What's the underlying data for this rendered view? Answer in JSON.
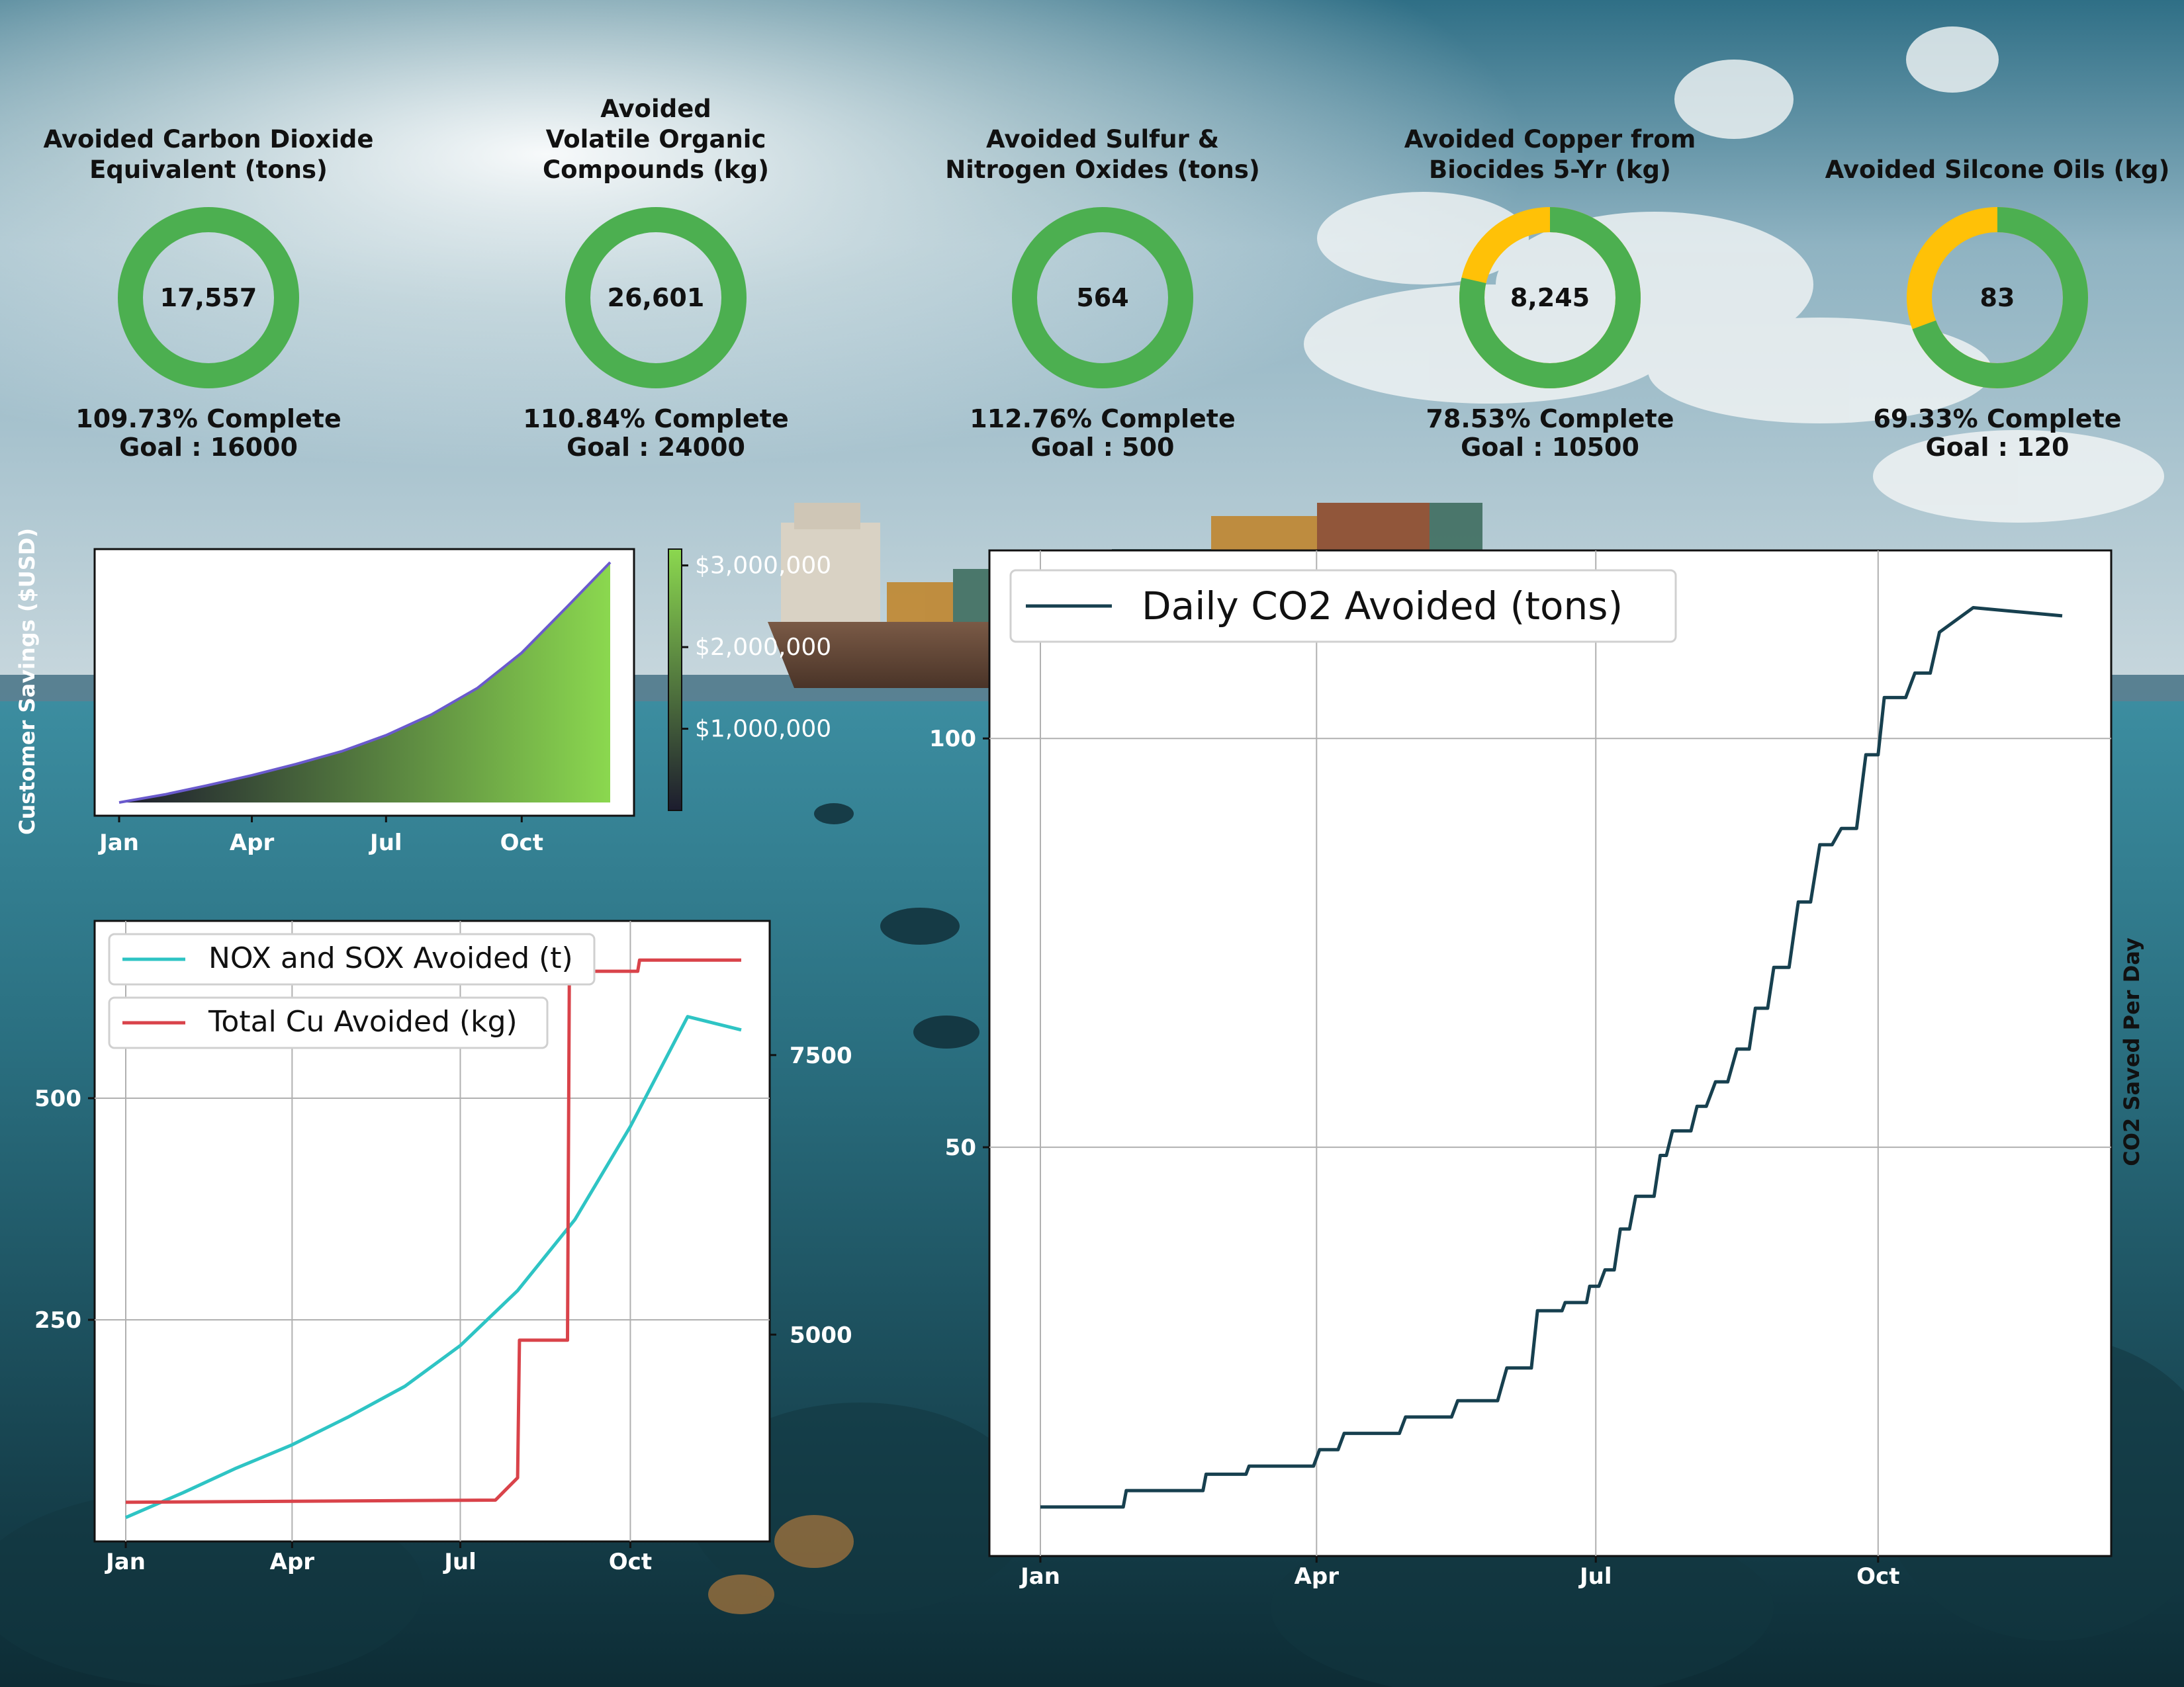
{
  "kpis": [
    {
      "title": "Avoided Carbon Dioxide\nEquivalent (tons)",
      "value": "17,557",
      "percent_complete": 1.0,
      "complete_text": "109.73% Complete",
      "goal_text": "Goal : 16000",
      "color": "#4caf50"
    },
    {
      "title": "Avoided\nVolatile Organic\nCompounds (kg)",
      "value": "26,601",
      "percent_complete": 1.0,
      "complete_text": "110.84% Complete",
      "goal_text": "Goal : 24000",
      "color": "#4caf50"
    },
    {
      "title": "Avoided Sulfur &\nNitrogen Oxides (tons)",
      "value": "564",
      "percent_complete": 1.0,
      "complete_text": "112.76% Complete",
      "goal_text": "Goal : 500",
      "color": "#4caf50"
    },
    {
      "title": "Avoided Copper from\nBiocides 5-Yr (kg)",
      "value": "8,245",
      "percent_complete": 0.7853,
      "complete_text": "78.53% Complete",
      "goal_text": "Goal : 10500",
      "color": "#4caf50",
      "remainder_color": "#ffc107"
    },
    {
      "title": "Avoided Silcone Oils (kg)",
      "value": "83",
      "percent_complete": 0.6933,
      "complete_text": "69.33% Complete",
      "goal_text": "Goal : 120",
      "color": "#4caf50",
      "remainder_color": "#ffc107"
    }
  ],
  "chart_data": [
    {
      "type": "area",
      "ylabel": "Customer Savings\n($USD)",
      "x_ticks": [
        "Jan",
        "Apr",
        "Jul",
        "Oct"
      ],
      "colorbar": {
        "ticks": [
          "$1,000,000",
          "$2,000,000",
          "$3,000,000"
        ],
        "range": [
          0,
          3200000
        ],
        "colors": [
          "#1c1c2e",
          "#8bd84f"
        ]
      },
      "x": [
        "Jan 1",
        "Feb 1",
        "Mar 1",
        "Apr 1",
        "May 1",
        "Jun 1",
        "Jul 1",
        "Aug 1",
        "Sep 1",
        "Oct 1",
        "Nov 1",
        "Nov 30"
      ],
      "values": [
        0,
        100000,
        210000,
        340000,
        480000,
        640000,
        840000,
        1100000,
        1430000,
        1870000,
        2450000,
        3000000
      ],
      "line_color": "#6a5acd"
    },
    {
      "type": "line",
      "x_ticks": [
        "Jan",
        "Apr",
        "Jul",
        "Oct"
      ],
      "y_ticks": [
        250,
        500
      ],
      "y2_ticks": [
        5000,
        7500
      ],
      "ylim": [
        0,
        700
      ],
      "y2lim": [
        3150,
        8700
      ],
      "series": [
        {
          "name": "NOX and SOX Avoided (t)",
          "color": "#2ec4c4",
          "axis": "left",
          "x": [
            "Jan 1",
            "Feb 1",
            "Mar 1",
            "Apr 1",
            "May 1",
            "Jun 1",
            "Jul 1",
            "Aug 1",
            "Sep 1",
            "Oct 1",
            "Nov 1",
            "Nov 30"
          ],
          "values": [
            27,
            55,
            82,
            109,
            140,
            175,
            221,
            283,
            363,
            468,
            592,
            577
          ]
        },
        {
          "name": "Total Cu Avoided (kg)",
          "color": "#d9434a",
          "axis": "right",
          "x": [
            "Jan 1",
            "Jul 20",
            "Aug 1",
            "Aug 2",
            "Aug 28",
            "Aug 29",
            "Oct 5",
            "Oct 6",
            "Nov 30"
          ],
          "values": [
            3500,
            3520,
            3720,
            4950,
            4950,
            8250,
            8250,
            8350,
            8350
          ]
        }
      ]
    },
    {
      "type": "line",
      "ylabel": "CO2 Saved Per Day",
      "x_ticks": [
        "Jan",
        "Apr",
        "Jul",
        "Oct"
      ],
      "y_ticks": [
        50,
        100
      ],
      "ylim": [
        0,
        123
      ],
      "series": [
        {
          "name": "Daily CO2 Avoided (tons)",
          "color": "#17404f",
          "x": [
            "Jan 1",
            "Jan 28",
            "Jan 29",
            "Feb 23",
            "Feb 24",
            "Mar 9",
            "Mar 10",
            "Mar 31",
            "Apr 2",
            "Apr 8",
            "Apr 10",
            "Apr 28",
            "Apr 30",
            "May 15",
            "May 17",
            "May 30",
            "Jun 2",
            "Jun 10",
            "Jun 12",
            "Jun 20",
            "Jun 21",
            "Jun 28",
            "Jun 29",
            "Jul 2",
            "Jul 4",
            "Jul 7",
            "Jul 9",
            "Jul 12",
            "Jul 14",
            "Jul 20",
            "Jul 22",
            "Jul 24",
            "Jul 26",
            "Aug 1",
            "Aug 3",
            "Aug 6",
            "Aug 9",
            "Aug 13",
            "Aug 16",
            "Aug 20",
            "Aug 22",
            "Aug 26",
            "Aug 28",
            "Sep 2",
            "Sep 5",
            "Sep 9",
            "Sep 12",
            "Sep 16",
            "Sep 19",
            "Sep 24",
            "Sep 27",
            "Oct 1",
            "Oct 3",
            "Oct 10",
            "Oct 13",
            "Oct 18",
            "Oct 21",
            "Nov 1",
            "Nov 30"
          ],
          "values": [
            6,
            6,
            8,
            8,
            10,
            10,
            11,
            11,
            13,
            13,
            15,
            15,
            17,
            17,
            19,
            19,
            23,
            23,
            30,
            30,
            31,
            31,
            33,
            33,
            35,
            35,
            40,
            40,
            44,
            44,
            49,
            49,
            52,
            52,
            55,
            55,
            58,
            58,
            62,
            62,
            67,
            67,
            72,
            72,
            80,
            80,
            87,
            87,
            89,
            89,
            98,
            98,
            105,
            105,
            108,
            108,
            113,
            116,
            115
          ]
        }
      ]
    }
  ]
}
